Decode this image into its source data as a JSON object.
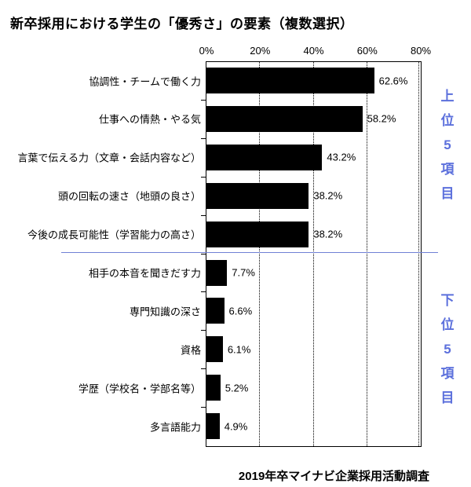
{
  "title": "新卒採用における学生の「優秀さ」の要素（複数選択）",
  "source": "2019年卒マイナビ企業採用活動調査",
  "group_labels": {
    "top": "上位5項目",
    "bottom": "下位5項目"
  },
  "colors": {
    "bar": "#000000",
    "group_label_text": "#5c70dc",
    "divider_line": "#7080d5",
    "text": "#000000",
    "background": "#ffffff"
  },
  "chart_data": {
    "type": "bar",
    "orientation": "horizontal",
    "title": "新卒採用における学生の「優秀さ」の要素（複数選択）",
    "xlabel": "",
    "ylabel": "",
    "x_axis": {
      "position": "top",
      "min": 0,
      "max": 80,
      "ticks": [
        "0%",
        "20%",
        "40%",
        "60%",
        "80%"
      ],
      "gridlines": "dotted"
    },
    "categories": [
      "協調性・チームで働く力",
      "仕事への情熱・やる気",
      "言葉で伝える力（文章・会話内容など）",
      "頭の回転の速さ（地頭の良さ）",
      "今後の成長可能性（学習能力の高さ）",
      "相手の本音を聞きだす力",
      "専門知識の深さ",
      "資格",
      "学歴（学校名・学部名等）",
      "多言語能力"
    ],
    "values": [
      62.6,
      58.2,
      43.2,
      38.2,
      38.2,
      7.7,
      6.6,
      6.1,
      5.2,
      4.9
    ],
    "value_labels": [
      "62.6%",
      "58.2%",
      "43.2%",
      "38.2%",
      "38.2%",
      "7.7%",
      "6.6%",
      "6.1%",
      "5.2%",
      "4.9%"
    ],
    "groups": [
      {
        "label": "上位5項目",
        "indices": [
          0,
          1,
          2,
          3,
          4
        ]
      },
      {
        "label": "下位5項目",
        "indices": [
          5,
          6,
          7,
          8,
          9
        ]
      }
    ],
    "legend": null,
    "footnote": "2019年卒マイナビ企業採用活動調査"
  }
}
